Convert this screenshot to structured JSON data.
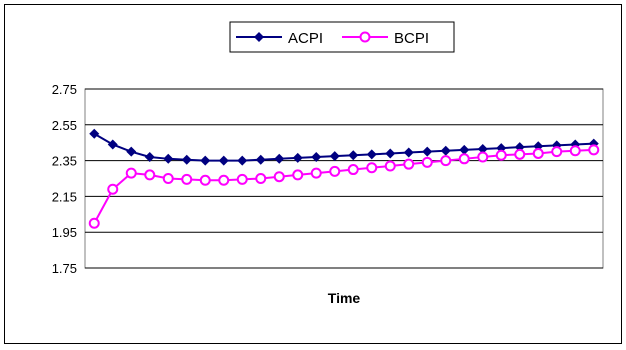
{
  "chart_data": {
    "type": "line",
    "title": "",
    "xlabel": "Time",
    "ylabel": "",
    "ylim": [
      1.75,
      2.75
    ],
    "yticks": [
      "1.75",
      "1.95",
      "2.15",
      "2.35",
      "2.55",
      "2.75"
    ],
    "grid": true,
    "legend": "top-center",
    "x": [
      1,
      2,
      3,
      4,
      5,
      6,
      7,
      8,
      9,
      10,
      11,
      12,
      13,
      14,
      15,
      16,
      17,
      18,
      19,
      20,
      21,
      22,
      23,
      24,
      25,
      26,
      27,
      28
    ],
    "series": [
      {
        "name": "ACPI",
        "color": "#000080",
        "marker": "diamond",
        "values": [
          2.5,
          2.44,
          2.4,
          2.37,
          2.36,
          2.355,
          2.35,
          2.35,
          2.35,
          2.355,
          2.36,
          2.365,
          2.37,
          2.375,
          2.38,
          2.385,
          2.39,
          2.395,
          2.4,
          2.405,
          2.41,
          2.415,
          2.42,
          2.425,
          2.43,
          2.435,
          2.44,
          2.445
        ]
      },
      {
        "name": "BCPI",
        "color": "#ff00ff",
        "marker": "circle",
        "values": [
          2.0,
          2.19,
          2.28,
          2.27,
          2.25,
          2.245,
          2.24,
          2.24,
          2.245,
          2.25,
          2.26,
          2.27,
          2.28,
          2.29,
          2.3,
          2.31,
          2.32,
          2.33,
          2.34,
          2.35,
          2.36,
          2.37,
          2.38,
          2.385,
          2.39,
          2.4,
          2.405,
          2.41
        ]
      }
    ]
  }
}
